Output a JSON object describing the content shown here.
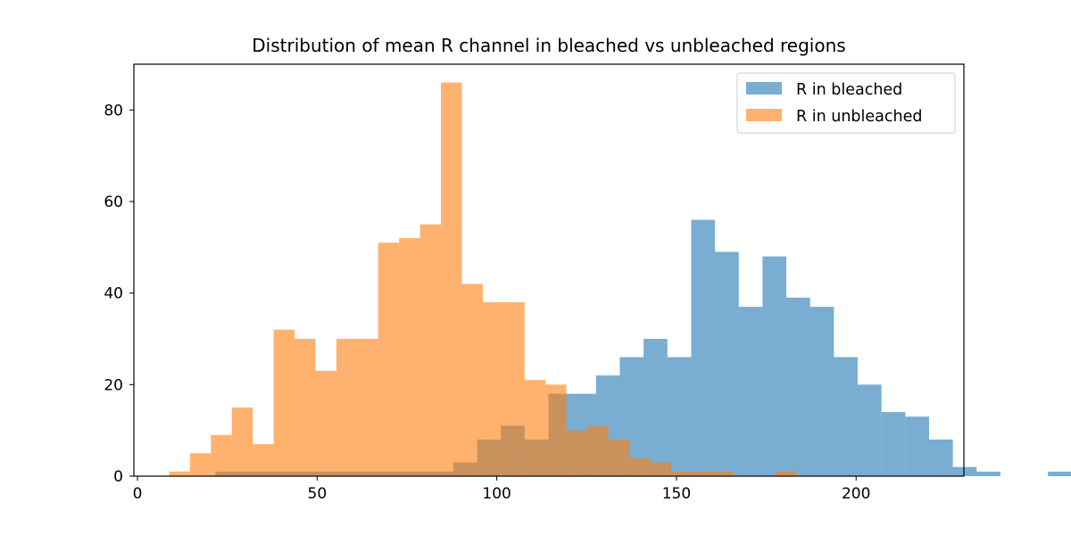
{
  "chart_data": {
    "type": "bar",
    "title": "Distribution of mean R channel in bleached vs unbleached regions",
    "xlabel": "",
    "ylabel": "",
    "xlim": [
      -1,
      230
    ],
    "ylim": [
      0,
      90
    ],
    "xticks": [
      0,
      50,
      100,
      150,
      200
    ],
    "yticks": [
      0,
      20,
      40,
      60,
      80
    ],
    "grid": false,
    "legend_position": "top-right",
    "colors": {
      "bleached": "#1f77b4",
      "unbleached": "#ff7f0e",
      "bar_alpha": 0.6
    },
    "series": [
      {
        "name": "R in unbleached",
        "bin_start": 8.8,
        "bin_width": 5.82,
        "values": [
          1,
          5,
          9,
          15,
          7,
          32,
          30,
          23,
          30,
          30,
          51,
          52,
          55,
          86,
          42,
          38,
          38,
          21,
          20,
          10,
          11,
          8,
          4,
          3,
          1,
          1,
          1,
          0,
          0,
          1
        ]
      },
      {
        "name": "R in bleached",
        "bin_start": 21.7,
        "bin_width": 6.62,
        "values": [
          1,
          1,
          1,
          1,
          1,
          1,
          1,
          1,
          1,
          1,
          3,
          8,
          11,
          8,
          18,
          18,
          22,
          26,
          30,
          26,
          56,
          49,
          37,
          48,
          39,
          37,
          26,
          20,
          14,
          13,
          8,
          2,
          1,
          0,
          0,
          1
        ]
      }
    ]
  }
}
